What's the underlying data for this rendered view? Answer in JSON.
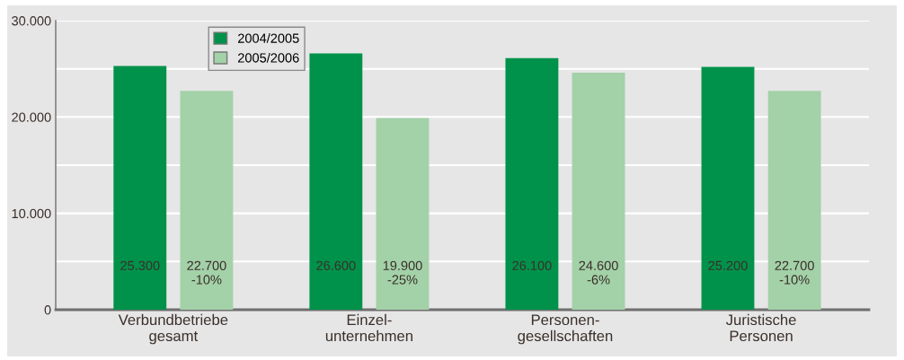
{
  "chart_data": {
    "type": "bar",
    "categories": [
      "Verbundbetriebe\ngesamt",
      "Einzel-\nunternehmen",
      "Personen-\ngesellschaften",
      "Juristische\nPersonen"
    ],
    "series": [
      {
        "name": "2004/2005",
        "color": "#00924a",
        "values": [
          25300,
          26600,
          26100,
          25200
        ],
        "value_labels": [
          "25.300",
          "26.600",
          "26.100",
          "25.200"
        ]
      },
      {
        "name": "2005/2006",
        "color": "#a3d1a8",
        "values": [
          22700,
          19900,
          24600,
          22700
        ],
        "value_labels": [
          "22.700\n-10%",
          "19.900\n-25%",
          "24.600\n-6%",
          "22.700\n-10%"
        ]
      }
    ],
    "ylim": [
      0,
      30000
    ],
    "yticks": [
      {
        "value": 0,
        "label": "0"
      },
      {
        "value": 5000,
        "label": null
      },
      {
        "value": 10000,
        "label": "10.000"
      },
      {
        "value": 15000,
        "label": null
      },
      {
        "value": 20000,
        "label": "20.000"
      },
      {
        "value": 25000,
        "label": null
      },
      {
        "value": 30000,
        "label": "30.000"
      }
    ],
    "grid": "y",
    "legend": "top left"
  }
}
